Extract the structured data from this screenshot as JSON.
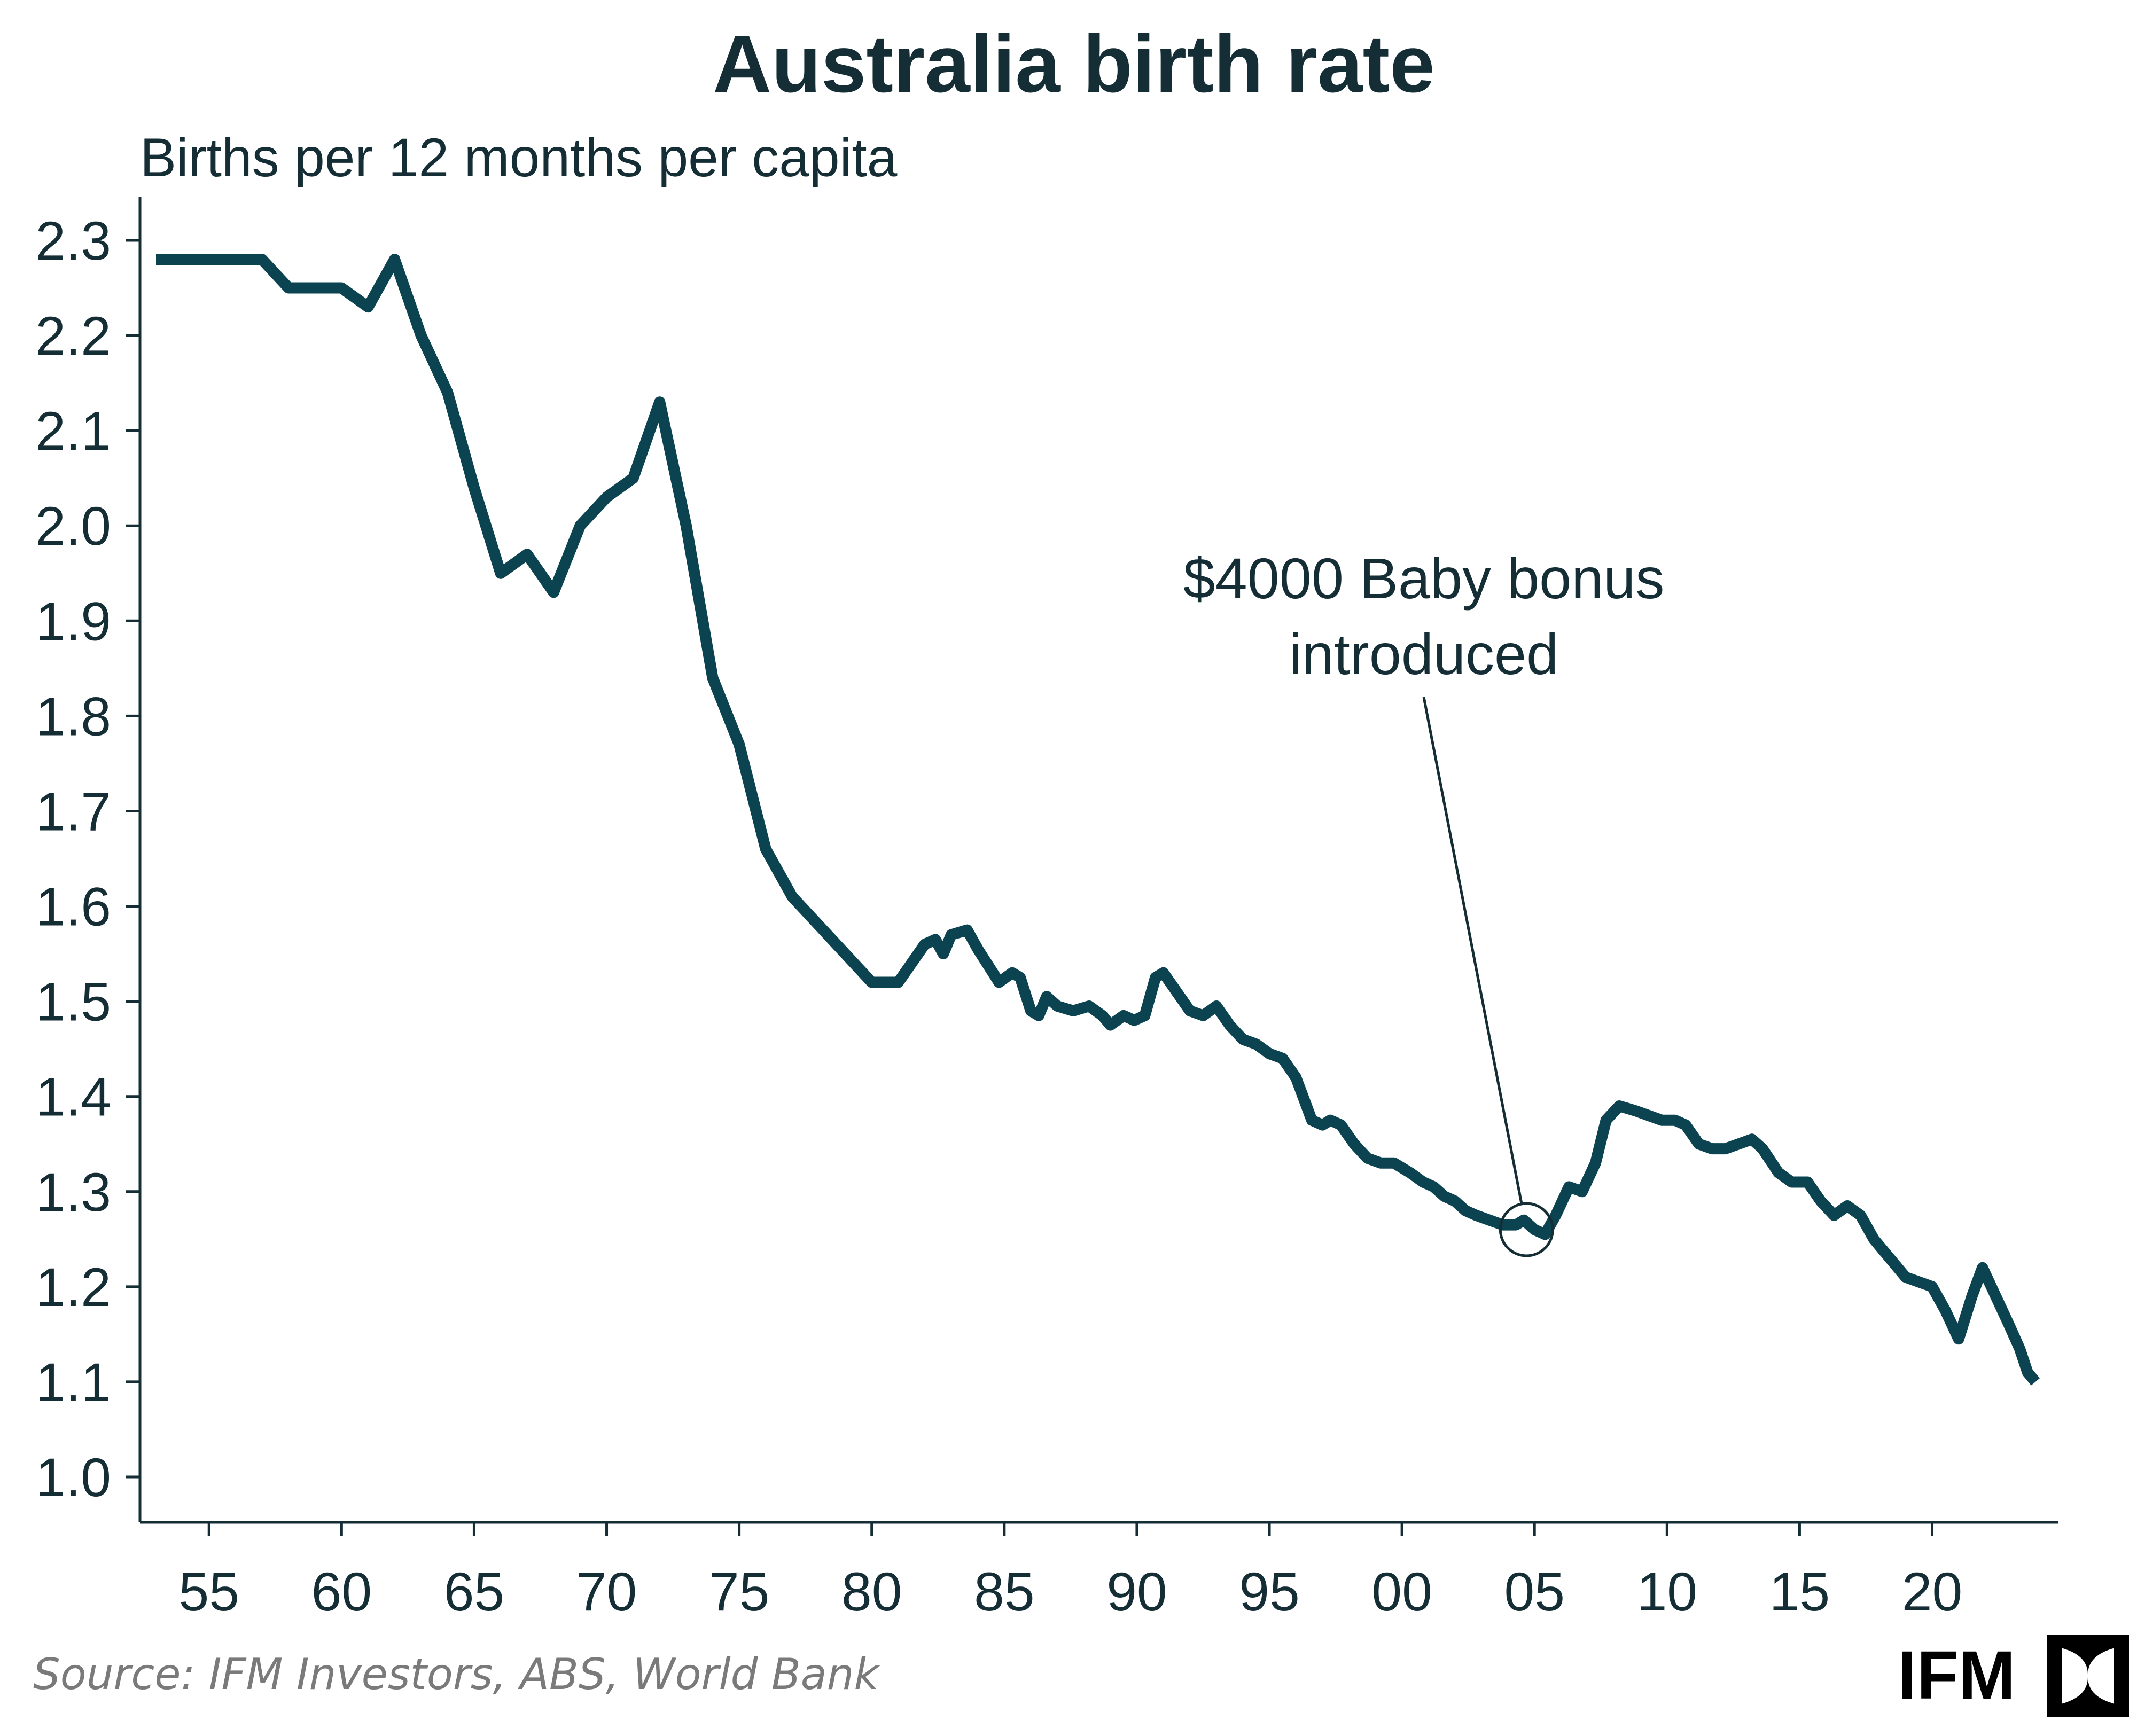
{
  "chart_data": {
    "type": "line",
    "title": "Australia birth rate",
    "ylabel": "Births per 12 months per capita",
    "xlabel": "",
    "ylim": [
      1.0,
      2.3
    ],
    "xlim": [
      1953,
      2024
    ],
    "y_ticks": [
      "1.0",
      "1.1",
      "1.2",
      "1.3",
      "1.4",
      "1.5",
      "1.6",
      "1.7",
      "1.8",
      "1.9",
      "2.0",
      "2.1",
      "2.2",
      "2.3"
    ],
    "x_ticks": [
      {
        "value": 1955,
        "label": "55"
      },
      {
        "value": 1960,
        "label": "60"
      },
      {
        "value": 1965,
        "label": "65"
      },
      {
        "value": 1970,
        "label": "70"
      },
      {
        "value": 1975,
        "label": "75"
      },
      {
        "value": 1980,
        "label": "80"
      },
      {
        "value": 1985,
        "label": "85"
      },
      {
        "value": 1990,
        "label": "90"
      },
      {
        "value": 1995,
        "label": "95"
      },
      {
        "value": 2000,
        "label": "00"
      },
      {
        "value": 2005,
        "label": "05"
      },
      {
        "value": 2010,
        "label": "10"
      },
      {
        "value": 2015,
        "label": "15"
      },
      {
        "value": 2020,
        "label": "20"
      }
    ],
    "grid": false,
    "series": [
      {
        "color": "#0b4350",
        "points": [
          [
            1953,
            2.28
          ],
          [
            1957,
            2.28
          ],
          [
            1958,
            2.25
          ],
          [
            1960,
            2.25
          ],
          [
            1961,
            2.23
          ],
          [
            1962,
            2.28
          ],
          [
            1963,
            2.2
          ],
          [
            1964,
            2.14
          ],
          [
            1965,
            2.04
          ],
          [
            1966,
            1.95
          ],
          [
            1967,
            1.97
          ],
          [
            1968,
            1.93
          ],
          [
            1969,
            2.0
          ],
          [
            1970,
            2.03
          ],
          [
            1971,
            2.05
          ],
          [
            1972,
            2.13
          ],
          [
            1973,
            2.0
          ],
          [
            1974,
            1.84
          ],
          [
            1975,
            1.77
          ],
          [
            1976,
            1.66
          ],
          [
            1977,
            1.61
          ],
          [
            1980,
            1.52
          ],
          [
            1981,
            1.52
          ],
          [
            1982,
            1.56
          ],
          [
            1982.4,
            1.565
          ],
          [
            1982.7,
            1.55
          ],
          [
            1983,
            1.57
          ],
          [
            1983.6,
            1.575
          ],
          [
            1984,
            1.555
          ],
          [
            1984.8,
            1.52
          ],
          [
            1985.3,
            1.53
          ],
          [
            1985.6,
            1.525
          ],
          [
            1986,
            1.49
          ],
          [
            1986.3,
            1.485
          ],
          [
            1986.6,
            1.505
          ],
          [
            1987,
            1.495
          ],
          [
            1987.6,
            1.49
          ],
          [
            1988.2,
            1.495
          ],
          [
            1988.7,
            1.485
          ],
          [
            1989,
            1.475
          ],
          [
            1989.5,
            1.485
          ],
          [
            1989.9,
            1.48
          ],
          [
            1990.3,
            1.485
          ],
          [
            1990.7,
            1.525
          ],
          [
            1991,
            1.53
          ],
          [
            1991.5,
            1.51
          ],
          [
            1992,
            1.49
          ],
          [
            1992.5,
            1.485
          ],
          [
            1993,
            1.495
          ],
          [
            1993.5,
            1.475
          ],
          [
            1994,
            1.46
          ],
          [
            1994.5,
            1.455
          ],
          [
            1995,
            1.445
          ],
          [
            1995.5,
            1.44
          ],
          [
            1996,
            1.42
          ],
          [
            1996.6,
            1.375
          ],
          [
            1997,
            1.37
          ],
          [
            1997.3,
            1.375
          ],
          [
            1997.7,
            1.37
          ],
          [
            1998.2,
            1.35
          ],
          [
            1998.7,
            1.335
          ],
          [
            1999.2,
            1.33
          ],
          [
            1999.7,
            1.33
          ],
          [
            2000.3,
            1.32
          ],
          [
            2000.8,
            1.31
          ],
          [
            2001.2,
            1.305
          ],
          [
            2001.6,
            1.295
          ],
          [
            2002,
            1.29
          ],
          [
            2002.4,
            1.28
          ],
          [
            2002.8,
            1.275
          ],
          [
            2003.3,
            1.27
          ],
          [
            2003.8,
            1.265
          ],
          [
            2004.3,
            1.265
          ],
          [
            2004.6,
            1.27
          ],
          [
            2005,
            1.26
          ],
          [
            2005.4,
            1.255
          ],
          [
            2005.8,
            1.275
          ],
          [
            2006.3,
            1.305
          ],
          [
            2006.8,
            1.3
          ],
          [
            2007.3,
            1.33
          ],
          [
            2007.7,
            1.375
          ],
          [
            2008.2,
            1.39
          ],
          [
            2008.8,
            1.385
          ],
          [
            2009.3,
            1.38
          ],
          [
            2009.8,
            1.375
          ],
          [
            2010.3,
            1.375
          ],
          [
            2010.7,
            1.37
          ],
          [
            2011.2,
            1.35
          ],
          [
            2011.7,
            1.345
          ],
          [
            2012.2,
            1.345
          ],
          [
            2012.7,
            1.35
          ],
          [
            2013.2,
            1.355
          ],
          [
            2013.6,
            1.345
          ],
          [
            2014.2,
            1.32
          ],
          [
            2014.7,
            1.31
          ],
          [
            2015.3,
            1.31
          ],
          [
            2015.8,
            1.29
          ],
          [
            2016.3,
            1.275
          ],
          [
            2016.8,
            1.285
          ],
          [
            2017.3,
            1.275
          ],
          [
            2017.8,
            1.25
          ],
          [
            2018.4,
            1.23
          ],
          [
            2019,
            1.21
          ],
          [
            2019.5,
            1.205
          ],
          [
            2020,
            1.2
          ],
          [
            2020.5,
            1.175
          ],
          [
            2021,
            1.145
          ],
          [
            2021.5,
            1.19
          ],
          [
            2021.9,
            1.22
          ],
          [
            2022.4,
            1.19
          ],
          [
            2022.9,
            1.16
          ],
          [
            2023.3,
            1.135
          ],
          [
            2023.6,
            1.11
          ],
          [
            2023.9,
            1.1
          ]
        ]
      }
    ],
    "annotations": [
      {
        "text_lines": [
          "$4000 Baby bonus",
          "introduced"
        ],
        "target_x": 2004.7,
        "target_y": 1.26
      }
    ]
  },
  "source": "Source: IFM Investors, ABS, World Bank",
  "logo": {
    "text": "IFM"
  }
}
